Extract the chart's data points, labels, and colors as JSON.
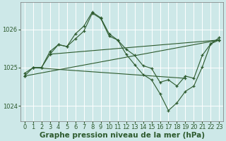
{
  "background_color": "#cde8e8",
  "grid_color": "#ffffff",
  "line_color": "#2d5a2d",
  "xlabel": "Graphe pression niveau de la mer (hPa)",
  "xlabel_fontsize": 7.5,
  "tick_fontsize": 6,
  "xlim": [
    -0.5,
    23.5
  ],
  "ylim": [
    1023.6,
    1026.7
  ],
  "yticks": [
    1024,
    1025,
    1026
  ],
  "series": [
    {
      "x": [
        0,
        1,
        2,
        3,
        4,
        5,
        6,
        7,
        8,
        9,
        10,
        11,
        12,
        13,
        14,
        15,
        16,
        17,
        18,
        19,
        20,
        21,
        22,
        23
      ],
      "y": [
        1024.85,
        1025.0,
        1025.0,
        1025.35,
        1025.6,
        1025.55,
        1025.75,
        1025.95,
        1026.42,
        1026.28,
        1025.82,
        1025.72,
        1025.48,
        1025.32,
        1025.05,
        1024.98,
        1024.62,
        1024.68,
        1024.52,
        1024.78,
        1024.72,
        1025.32,
        1025.62,
        1025.72
      ]
    },
    {
      "x": [
        0,
        1,
        2,
        3,
        4,
        5,
        6,
        7,
        8,
        9,
        10,
        11,
        12,
        13,
        14,
        15,
        16,
        17,
        18,
        19,
        20,
        21,
        22,
        23
      ],
      "y": [
        1024.78,
        1025.0,
        1025.0,
        1025.42,
        1025.6,
        1025.55,
        1025.88,
        1026.08,
        1026.45,
        1026.3,
        1025.88,
        1025.72,
        1025.35,
        1025.08,
        1024.82,
        1024.68,
        1024.32,
        1023.88,
        1024.08,
        1024.38,
        1024.52,
        1025.02,
        1025.62,
        1025.78
      ]
    },
    {
      "x": [
        0,
        23
      ],
      "y": [
        1024.78,
        1025.72
      ]
    },
    {
      "x": [
        1,
        19
      ],
      "y": [
        1025.0,
        1024.72
      ]
    },
    {
      "x": [
        3,
        23
      ],
      "y": [
        1025.35,
        1025.72
      ]
    }
  ]
}
